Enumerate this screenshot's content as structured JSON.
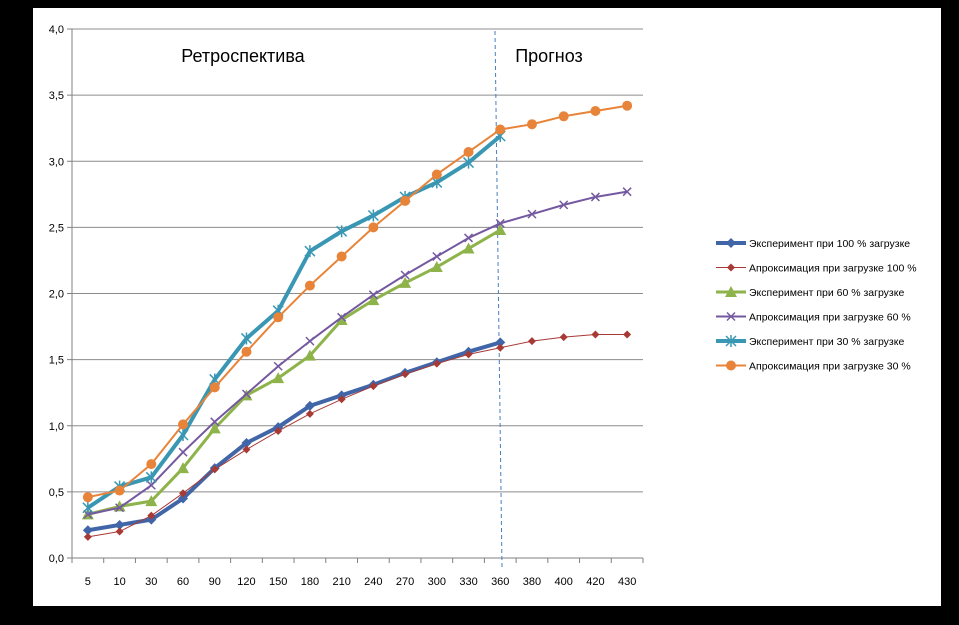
{
  "chart_data": {
    "type": "line",
    "title": "",
    "xlabel": "",
    "ylabel": "",
    "categories": [
      "5",
      "10",
      "30",
      "60",
      "90",
      "120",
      "150",
      "180",
      "210",
      "240",
      "270",
      "300",
      "330",
      "360",
      "380",
      "400",
      "420",
      "430"
    ],
    "ylim": [
      0,
      4
    ],
    "yticks": [
      "0,0",
      "0,5",
      "1,0",
      "1,5",
      "2,0",
      "2,5",
      "3,0",
      "3,5",
      "4,0"
    ],
    "grid": true,
    "legend": "right",
    "annotations": {
      "retro": "Ретроспектива",
      "forecast": "Прогноз"
    },
    "series": [
      {
        "name": "Эксперимент при 100 % загрузке",
        "color": "#4066A8",
        "marker": "diamond",
        "width": 4,
        "values": [
          0.21,
          0.25,
          0.29,
          0.45,
          0.68,
          0.87,
          0.99,
          1.15,
          1.23,
          1.31,
          1.4,
          1.48,
          1.56,
          1.63,
          null,
          null,
          null,
          null
        ]
      },
      {
        "name": "Апроксимация при загрузке 100 %",
        "color": "#A83A36",
        "marker": "diamond-small",
        "width": 1,
        "values": [
          0.16,
          0.2,
          0.32,
          0.49,
          0.67,
          0.82,
          0.96,
          1.09,
          1.2,
          1.3,
          1.39,
          1.47,
          1.54,
          1.59,
          1.64,
          1.67,
          1.69,
          1.69
        ]
      },
      {
        "name": "Эксперимент при 60 % загрузке",
        "color": "#8DB34A",
        "marker": "triangle",
        "width": 3,
        "values": [
          0.33,
          0.39,
          0.43,
          0.68,
          0.98,
          1.23,
          1.36,
          1.53,
          1.8,
          1.95,
          2.08,
          2.2,
          2.34,
          2.48,
          null,
          null,
          null,
          null
        ]
      },
      {
        "name": "Апроксимация при загрузке 60 %",
        "color": "#7559A0",
        "marker": "x",
        "width": 2,
        "values": [
          0.33,
          0.38,
          0.55,
          0.8,
          1.03,
          1.24,
          1.45,
          1.64,
          1.82,
          1.99,
          2.14,
          2.28,
          2.42,
          2.53,
          2.6,
          2.67,
          2.73,
          2.77
        ]
      },
      {
        "name": "Эксперимент при 30 % загрузке",
        "color": "#3A97B4",
        "marker": "star",
        "width": 4,
        "values": [
          0.38,
          0.54,
          0.61,
          0.93,
          1.35,
          1.66,
          1.87,
          2.32,
          2.47,
          2.59,
          2.73,
          2.84,
          2.99,
          3.19,
          null,
          null,
          null,
          null
        ]
      },
      {
        "name": "Апроксимация при загрузке 30 %",
        "color": "#E8843A",
        "marker": "circle",
        "width": 2,
        "values": [
          0.46,
          0.51,
          0.71,
          1.01,
          1.29,
          1.56,
          1.82,
          2.06,
          2.28,
          2.5,
          2.7,
          2.9,
          3.07,
          3.24,
          3.28,
          3.34,
          3.38,
          3.42
        ]
      }
    ]
  }
}
